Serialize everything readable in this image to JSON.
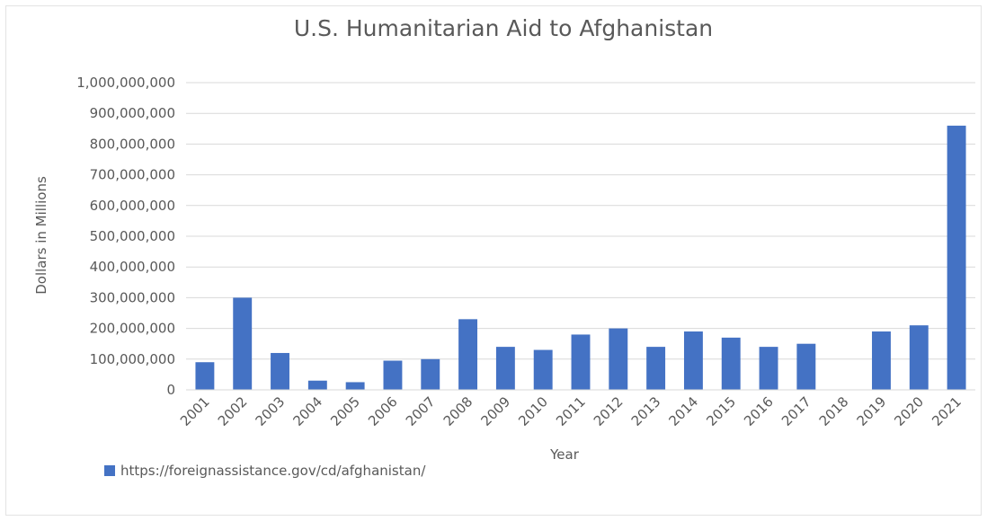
{
  "chart_data": {
    "type": "bar",
    "title": "U.S. Humanitarian Aid to Afghanistan",
    "xlabel": "Year",
    "ylabel": "Dollars in Millions",
    "ylim": [
      0,
      1000000000
    ],
    "y_ticks": [
      "0",
      "100,000,000",
      "200,000,000",
      "300,000,000",
      "400,000,000",
      "500,000,000",
      "600,000,000",
      "700,000,000",
      "800,000,000",
      "900,000,000",
      "1,000,000,000"
    ],
    "categories": [
      "2001",
      "2002",
      "2003",
      "2004",
      "2005",
      "2006",
      "2007",
      "2008",
      "2009",
      "2010",
      "2011",
      "2012",
      "2013",
      "2014",
      "2015",
      "2016",
      "2017",
      "2018",
      "2019",
      "2020",
      "2021"
    ],
    "series": [
      {
        "name": "https://foreignassistance.gov/cd/afghanistan/",
        "color": "#4472c4",
        "values": [
          90000000,
          300000000,
          120000000,
          30000000,
          25000000,
          95000000,
          100000000,
          230000000,
          140000000,
          130000000,
          180000000,
          200000000,
          140000000,
          190000000,
          170000000,
          140000000,
          150000000,
          0,
          190000000,
          210000000,
          860000000
        ]
      }
    ],
    "grid": true,
    "legend_position": "bottom-left"
  }
}
